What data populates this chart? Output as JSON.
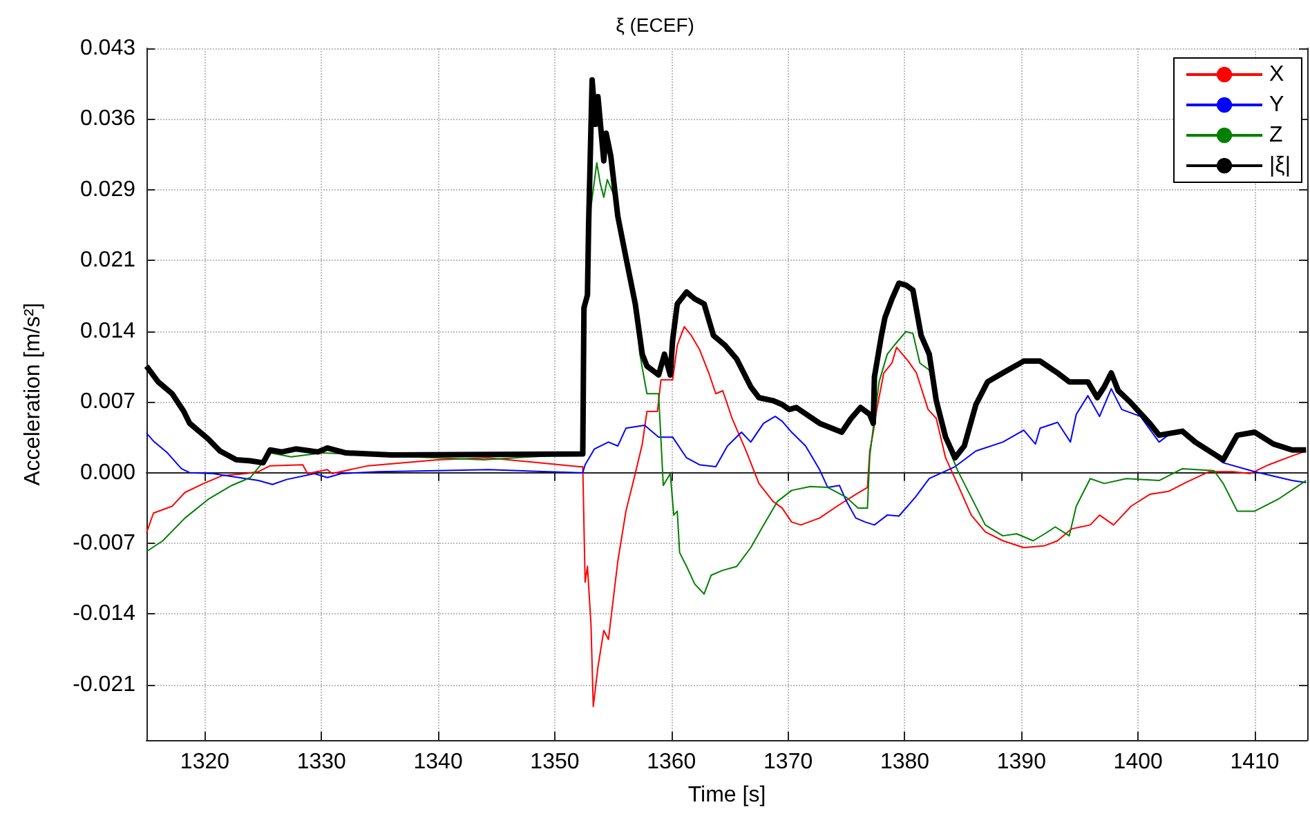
{
  "chart_data": {
    "type": "line",
    "title": "ξ (ECEF)",
    "xlabel": "Time [s]",
    "ylabel": "Acceleration [m/s²]",
    "xlim": [
      1315,
      1414.5
    ],
    "xticks": [
      1320,
      1330,
      1340,
      1350,
      1360,
      1370,
      1380,
      1390,
      1400,
      1410
    ],
    "ylim": [
      -0.0271,
      0.043
    ],
    "yticks": [
      {
        "value": -0.0215,
        "label": "-0.021"
      },
      {
        "value": -0.01433,
        "label": "-0.014"
      },
      {
        "value": -0.00717,
        "label": "-0.007"
      },
      {
        "value": 0,
        "label": "0.000"
      },
      {
        "value": 0.00717,
        "label": "0.007"
      },
      {
        "value": 0.01433,
        "label": "0.014"
      },
      {
        "value": 0.0215,
        "label": "0.021"
      },
      {
        "value": 0.02867,
        "label": "0.029"
      },
      {
        "value": 0.03583,
        "label": "0.036"
      },
      {
        "value": 0.043,
        "label": "0.043"
      }
    ],
    "grid": true,
    "legend": "top right",
    "marker": "none",
    "line_style": "solid",
    "series": [
      {
        "name": "X",
        "color": "#ff0000",
        "x": [
          1315,
          1315.6,
          1317.2,
          1318.3,
          1319.9,
          1321.5,
          1323.5,
          1324.6,
          1325.6,
          1328.4,
          1328.8,
          1330.5,
          1330.9,
          1334,
          1340,
          1344.3,
          1352.1,
          1352.4,
          1352.6,
          1352.8,
          1353.1,
          1353.3,
          1353.7,
          1354.2,
          1354.6,
          1355.4,
          1356.1,
          1356.9,
          1357.5,
          1357.9,
          1358.8,
          1359.1,
          1360.1,
          1360.5,
          1361.1,
          1361.7,
          1362.4,
          1363.2,
          1363.8,
          1364.4,
          1365.2,
          1366.4,
          1367.5,
          1368.7,
          1369.5,
          1370.3,
          1371.1,
          1372.7,
          1374.2,
          1375.8,
          1376.8,
          1377,
          1377.3,
          1377.6,
          1378.2,
          1378.9,
          1379.3,
          1380.3,
          1381,
          1382,
          1382.7,
          1383.5,
          1384.5,
          1385.7,
          1386.9,
          1388.4,
          1390.2,
          1392,
          1393.1,
          1394.3,
          1395.9,
          1396.7,
          1397.9,
          1399.4,
          1401,
          1402.6,
          1404.1,
          1406.1,
          1408.1,
          1409.6,
          1411.2,
          1413.2,
          1414.4
        ],
        "values": [
          -0.0061,
          -0.0041,
          -0.0034,
          -0.002,
          -0.0011,
          -0.0003,
          -0.0001,
          0.0001,
          0.0007,
          0.0008,
          -0.0001,
          0.0003,
          -0.0001,
          0.0007,
          0.0013,
          0.0015,
          0.0006,
          0.0006,
          -0.0111,
          -0.0095,
          -0.0153,
          -0.0237,
          -0.0197,
          -0.016,
          -0.0169,
          -0.009,
          -0.0039,
          -0.0001,
          0.0029,
          0.0062,
          0.0062,
          0.0094,
          0.0094,
          0.0129,
          0.0148,
          0.0139,
          0.0125,
          0.0101,
          0.008,
          0.0083,
          0.0055,
          0.0022,
          -0.0011,
          -0.0029,
          -0.0036,
          -0.005,
          -0.0053,
          -0.0046,
          -0.0034,
          -0.0022,
          -0.0015,
          0.0022,
          0.0041,
          0.0064,
          0.0101,
          0.0111,
          0.0127,
          0.0113,
          0.0101,
          0.0064,
          0.0055,
          0.0015,
          -0.0011,
          -0.0043,
          -0.006,
          -0.0069,
          -0.0076,
          -0.0074,
          -0.0069,
          -0.0057,
          -0.0053,
          -0.0043,
          -0.0053,
          -0.0034,
          -0.0022,
          -0.0019,
          -0.001,
          0.0001,
          0.0001,
          -0.0001,
          0.0008,
          0.0017,
          0.0022
        ]
      },
      {
        "name": "Y",
        "color": "#0000ff",
        "x": [
          1315,
          1315.6,
          1316.8,
          1318,
          1318.7,
          1320.7,
          1323.5,
          1324.6,
          1325.8,
          1327,
          1329.4,
          1330.5,
          1331.7,
          1334.9,
          1340,
          1344.3,
          1352.1,
          1352.4,
          1352.6,
          1353.4,
          1354.6,
          1355.4,
          1356.1,
          1357.7,
          1358.9,
          1360.1,
          1361.3,
          1362.4,
          1363.8,
          1364.8,
          1366,
          1366.8,
          1367.9,
          1368.9,
          1369.5,
          1370.3,
          1371.5,
          1372.7,
          1373.4,
          1374.4,
          1375,
          1375.8,
          1376.6,
          1377.4,
          1378.5,
          1379.5,
          1380.9,
          1382.1,
          1384.3,
          1386.1,
          1388.4,
          1390.2,
          1391.2,
          1391.6,
          1393.1,
          1394.2,
          1394.7,
          1395.7,
          1396.7,
          1397.7,
          1398.6,
          1400.2,
          1401.8,
          1402.6,
          1403.8,
          1404.9,
          1407.3,
          1410,
          1413.2,
          1414.4
        ],
        "values": [
          0.004,
          0.0032,
          0.002,
          0.0004,
          0,
          -0.0001,
          -0.0006,
          -0.0008,
          -0.0012,
          -0.0007,
          -0.0001,
          -0.0005,
          -0.0001,
          0.0001,
          0.0002,
          0.0003,
          0,
          0,
          0.0008,
          0.0024,
          0.0031,
          0.0027,
          0.0045,
          0.0048,
          0.0036,
          0.0036,
          0.0015,
          0.0008,
          0.0006,
          0.0027,
          0.0041,
          0.0031,
          0.005,
          0.0057,
          0.0052,
          0.0041,
          0.0027,
          0.0003,
          -0.0015,
          -0.0013,
          -0.0029,
          -0.0046,
          -0.005,
          -0.0053,
          -0.0043,
          -0.0044,
          -0.0025,
          -0.0006,
          0.0006,
          0.0022,
          0.0031,
          0.0043,
          0.0029,
          0.0045,
          0.0051,
          0.0031,
          0.0059,
          0.0078,
          0.0057,
          0.0085,
          0.0064,
          0.0057,
          0.0031,
          0.0038,
          0.0041,
          0.0031,
          0.001,
          0.0001,
          -0.0008,
          -0.001
        ]
      },
      {
        "name": "Z",
        "color": "#008000",
        "x": [
          1315,
          1316.4,
          1318.3,
          1320.3,
          1322.3,
          1323.9,
          1324.8,
          1325.6,
          1327.4,
          1330.1,
          1334,
          1340,
          1343.9,
          1352.1,
          1352.4,
          1352.6,
          1352.9,
          1353.6,
          1353.9,
          1354.2,
          1354.5,
          1355,
          1355.8,
          1356.7,
          1357.3,
          1357.5,
          1357.9,
          1358.9,
          1359.3,
          1359.9,
          1360.2,
          1360.5,
          1360.7,
          1361.3,
          1362,
          1362.8,
          1363.4,
          1364.4,
          1365.6,
          1366.8,
          1367.9,
          1369.1,
          1370.3,
          1371.9,
          1373.4,
          1375,
          1376,
          1376.8,
          1377,
          1377.4,
          1377.8,
          1378.5,
          1379.1,
          1380.1,
          1380.7,
          1381.3,
          1382.1,
          1382.9,
          1383.7,
          1384.5,
          1385.7,
          1386.9,
          1388.4,
          1389.6,
          1391,
          1392,
          1392.9,
          1394.1,
          1394.7,
          1395.9,
          1397.1,
          1399,
          1401.8,
          1403.8,
          1406.5,
          1407.3,
          1408.5,
          1410,
          1412,
          1414.4
        ],
        "values": [
          -0.008,
          -0.0069,
          -0.0046,
          -0.0027,
          -0.0013,
          -0.0005,
          0.0008,
          0.002,
          0.0016,
          0.002,
          0.0018,
          0.0015,
          0.0013,
          0.0019,
          0.0019,
          0.0134,
          0.0251,
          0.0314,
          0.0293,
          0.0279,
          0.0297,
          0.0283,
          0.0241,
          0.019,
          0.012,
          0.0106,
          0.008,
          0.008,
          -0.0013,
          -0.0001,
          -0.0043,
          -0.0039,
          -0.0081,
          -0.0095,
          -0.0113,
          -0.0123,
          -0.0104,
          -0.0099,
          -0.0095,
          -0.0076,
          -0.0053,
          -0.0029,
          -0.0018,
          -0.0014,
          -0.0015,
          -0.0025,
          -0.0036,
          -0.0036,
          0.0017,
          0.0055,
          0.0092,
          0.012,
          0.0129,
          0.0143,
          0.0141,
          0.0111,
          0.0104,
          0.0064,
          0.0027,
          0.0003,
          -0.0025,
          -0.0053,
          -0.0064,
          -0.0062,
          -0.0069,
          -0.0062,
          -0.0055,
          -0.0064,
          -0.0034,
          -0.0006,
          -0.0011,
          -0.0006,
          -0.0008,
          0.0004,
          0.0002,
          -0.0011,
          -0.0039,
          -0.0039,
          -0.0027,
          -0.0008
        ]
      },
      {
        "name": "|ξ|",
        "color": "#000000",
        "x": [
          1315,
          1316,
          1317.2,
          1318.2,
          1318.7,
          1320.3,
          1321.3,
          1322.7,
          1323.9,
          1325,
          1325.6,
          1326.6,
          1327.8,
          1329.7,
          1330.5,
          1332.1,
          1336,
          1352.4,
          1352.5,
          1352.8,
          1352.9,
          1353.2,
          1353.5,
          1353.7,
          1354.2,
          1354.4,
          1354.8,
          1355.4,
          1356.1,
          1356.9,
          1357.5,
          1357.9,
          1358.9,
          1359.4,
          1359.9,
          1360.1,
          1360.5,
          1361.3,
          1362,
          1362.8,
          1363.6,
          1364.6,
          1365.6,
          1366.8,
          1367.5,
          1368.7,
          1369.5,
          1370.1,
          1370.7,
          1372.7,
          1374.6,
          1375.4,
          1376.2,
          1377,
          1377.3,
          1377.4,
          1378,
          1378.3,
          1378.9,
          1379.5,
          1380.1,
          1380.7,
          1381.4,
          1382.1,
          1382.7,
          1383.5,
          1384.3,
          1385.1,
          1386.1,
          1387.1,
          1388.4,
          1390.2,
          1391.6,
          1393.1,
          1394.1,
          1395.7,
          1396.5,
          1397.1,
          1397.7,
          1398.3,
          1399.2,
          1401,
          1401.8,
          1403.8,
          1404.9,
          1407.3,
          1408.5,
          1410,
          1411.6,
          1413.2,
          1414.4
        ],
        "values": [
          0.0108,
          0.0092,
          0.008,
          0.0062,
          0.005,
          0.0034,
          0.0022,
          0.0013,
          0.0012,
          0.001,
          0.0023,
          0.0021,
          0.0024,
          0.0021,
          0.0025,
          0.002,
          0.0018,
          0.0019,
          0.0167,
          0.018,
          0.0251,
          0.0398,
          0.0353,
          0.0381,
          0.0316,
          0.0344,
          0.0321,
          0.026,
          0.0218,
          0.0171,
          0.012,
          0.0108,
          0.0099,
          0.012,
          0.0099,
          0.0134,
          0.0171,
          0.0183,
          0.0176,
          0.0171,
          0.0139,
          0.0129,
          0.0115,
          0.0087,
          0.0076,
          0.0073,
          0.0069,
          0.0064,
          0.0066,
          0.005,
          0.0041,
          0.0055,
          0.0066,
          0.0059,
          0.005,
          0.0097,
          0.0139,
          0.0157,
          0.0176,
          0.0192,
          0.019,
          0.0185,
          0.0139,
          0.012,
          0.0073,
          0.0036,
          0.0015,
          0.0027,
          0.0069,
          0.0092,
          0.0101,
          0.0113,
          0.0113,
          0.0101,
          0.0092,
          0.0092,
          0.0076,
          0.0087,
          0.0101,
          0.0083,
          0.0073,
          0.005,
          0.0038,
          0.0042,
          0.0031,
          0.0013,
          0.0038,
          0.0041,
          0.0029,
          0.0023,
          0.0023
        ]
      }
    ]
  }
}
